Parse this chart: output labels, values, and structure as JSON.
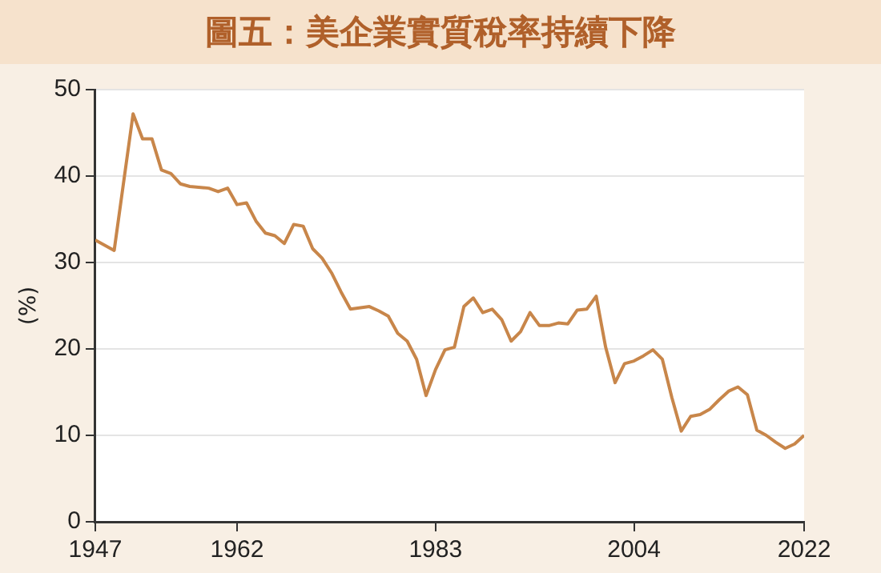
{
  "chart_data": {
    "type": "line",
    "title": "圖五：美企業實質稅率持續下降",
    "ylabel": "(%)",
    "x": [
      1947,
      1949,
      1951,
      1952,
      1953,
      1954,
      1955,
      1956,
      1957,
      1959,
      1960,
      1961,
      1962,
      1963,
      1964,
      1965,
      1966,
      1967,
      1968,
      1969,
      1970,
      1971,
      1972,
      1973,
      1974,
      1976,
      1977,
      1978,
      1979,
      1980,
      1981,
      1982,
      1983,
      1984,
      1985,
      1986,
      1987,
      1988,
      1989,
      1990,
      1991,
      1992,
      1993,
      1994,
      1995,
      1996,
      1997,
      1998,
      1999,
      2000,
      2001,
      2002,
      2003,
      2004,
      2005,
      2006,
      2007,
      2008,
      2009,
      2010,
      2011,
      2012,
      2013,
      2014,
      2015,
      2016,
      2017,
      2018,
      2019,
      2020,
      2021,
      2022
    ],
    "series": [
      {
        "color": "#c8864a",
        "values": [
          32.6,
          31.4,
          47.2,
          44.3,
          44.3,
          40.7,
          40.3,
          39.1,
          38.8,
          38.6,
          38.2,
          38.6,
          36.7,
          36.9,
          34.8,
          33.4,
          33.1,
          32.2,
          34.4,
          34.2,
          31.6,
          30.5,
          28.8,
          26.6,
          24.6,
          24.9,
          24.4,
          23.8,
          21.8,
          20.9,
          18.8,
          14.6,
          17.6,
          19.9,
          20.2,
          24.9,
          25.9,
          24.2,
          24.6,
          23.4,
          20.9,
          22.0,
          24.2,
          22.7,
          22.7,
          23.0,
          22.9,
          24.5,
          24.6,
          26.1,
          20.2,
          16.1,
          18.3,
          18.6,
          19.2,
          19.9,
          18.8,
          14.4,
          10.5,
          12.2,
          12.4,
          13.0,
          14.1,
          15.1,
          15.6,
          14.7,
          10.6,
          10.0,
          9.2,
          8.5,
          9.0,
          10.0
        ]
      }
    ],
    "xlim": [
      1947,
      2022
    ],
    "xticks": [
      1947,
      1962,
      1983,
      2004,
      2022
    ],
    "ylim": [
      0,
      50
    ],
    "yticks": [
      0,
      10,
      20,
      30,
      40,
      50
    ],
    "grid": "y",
    "legend": false,
    "marker": "none",
    "line_style": "solid"
  }
}
